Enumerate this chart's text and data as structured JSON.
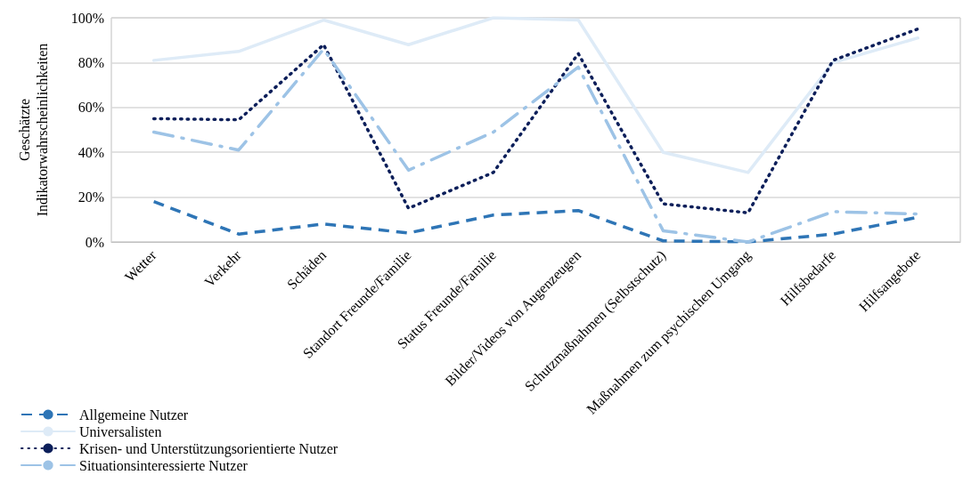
{
  "chart_data": {
    "type": "line",
    "ylabel": "Geschätzte\nIndikatorwahrscheinlichkeiten",
    "categories": [
      "Wetter",
      "Verkehr",
      "Schäden",
      "Standort Freunde/Familie",
      "Status Freunde/Familie",
      "Bilder/Videos von Augenzeugen",
      "Schutzmaßnahmen (Selbstschutz)",
      "Maßnahmen zum psychischen Umgang",
      "Hilfsbedarfe",
      "Hilfsangebote"
    ],
    "series": [
      {
        "name": "Allgemeine Nutzer",
        "color": "#2e75b6",
        "line_style": "dashed",
        "values": [
          18,
          3.5,
          8,
          4,
          12,
          14,
          0.5,
          0,
          3.5,
          11
        ]
      },
      {
        "name": "Universalisten",
        "color": "#deebf7",
        "line_style": "solid",
        "values": [
          81,
          85,
          99,
          88,
          100,
          99,
          40,
          31,
          80,
          91
        ]
      },
      {
        "name": "Krisen- und Unterstützungsorientierte Nutzer",
        "color": "#0c1f5a",
        "line_style": "dotted",
        "values": [
          55,
          54.5,
          88,
          15,
          31,
          84,
          17,
          13,
          81,
          95
        ]
      },
      {
        "name": "Situationsinteressierte Nutzer",
        "color": "#9dc3e6",
        "line_style": "dashdot",
        "values": [
          49,
          41,
          86,
          32,
          49,
          78,
          5,
          0,
          13.5,
          12.5
        ]
      }
    ],
    "ylim": [
      0,
      100
    ],
    "yticks": [
      {
        "value": 0,
        "label": "0%"
      },
      {
        "value": 20,
        "label": "20%"
      },
      {
        "value": 40,
        "label": "40%"
      },
      {
        "value": 60,
        "label": "60%"
      },
      {
        "value": 80,
        "label": "80%"
      },
      {
        "value": 100,
        "label": "100%"
      }
    ],
    "grid": "y",
    "legend": "bottom left",
    "marker": "none"
  }
}
